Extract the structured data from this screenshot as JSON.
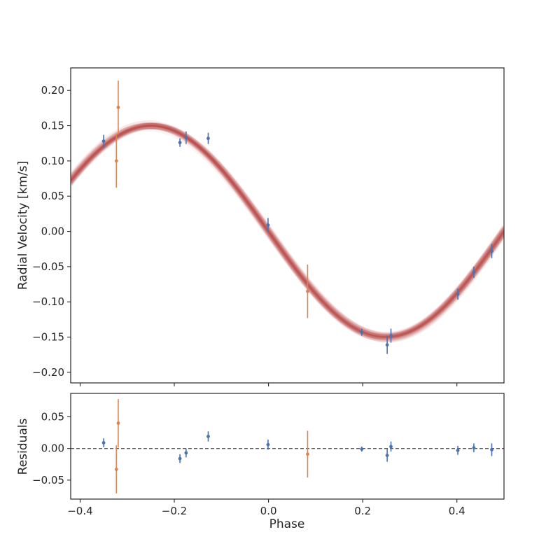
{
  "chart_data": [
    {
      "type": "scatter",
      "panel": "main",
      "xlabel": "",
      "ylabel": "Radial Velocity [km/s]",
      "xlim": [
        -0.42,
        0.5
      ],
      "ylim": [
        -0.215,
        0.232
      ],
      "x_ticks": [
        -0.4,
        -0.2,
        0.0,
        0.2,
        0.4
      ],
      "y_ticks": [
        -0.2,
        -0.15,
        -0.1,
        -0.05,
        0.0,
        0.05,
        0.1,
        0.15,
        0.2
      ],
      "y_tick_labels": [
        "−0.20",
        "−0.15",
        "−0.10",
        "−0.05",
        "0.00",
        "0.05",
        "0.10",
        "0.15",
        "0.20"
      ],
      "grid": false,
      "model": {
        "type": "sinusoid",
        "amplitude": 0.15,
        "peak_phase": -0.25,
        "color": "#b5443e"
      },
      "series": [
        {
          "color": "#4c72b0",
          "points": [
            {
              "x": -0.35,
              "y": 0.128,
              "err": 0.009
            },
            {
              "x": -0.188,
              "y": 0.126,
              "err": 0.006
            },
            {
              "x": -0.175,
              "y": 0.133,
              "err": 0.009
            },
            {
              "x": -0.128,
              "y": 0.132,
              "err": 0.008
            },
            {
              "x": -0.001,
              "y": 0.009,
              "err": 0.01
            },
            {
              "x": 0.198,
              "y": -0.143,
              "err": 0.005
            },
            {
              "x": 0.252,
              "y": -0.161,
              "err": 0.013
            },
            {
              "x": 0.26,
              "y": -0.148,
              "err": 0.01
            },
            {
              "x": 0.402,
              "y": -0.089,
              "err": 0.008
            },
            {
              "x": 0.436,
              "y": -0.058,
              "err": 0.008
            },
            {
              "x": 0.474,
              "y": -0.028,
              "err": 0.01
            }
          ]
        },
        {
          "color": "#dd8452",
          "points": [
            {
              "x": -0.323,
              "y": 0.1,
              "err": 0.038
            },
            {
              "x": -0.319,
              "y": 0.176,
              "err": 0.038
            },
            {
              "x": 0.083,
              "y": -0.085,
              "err": 0.038
            }
          ]
        }
      ]
    },
    {
      "type": "scatter",
      "panel": "residuals",
      "xlabel": "Phase",
      "ylabel": "Residuals",
      "xlim": [
        -0.42,
        0.5
      ],
      "ylim": [
        -0.08,
        0.087
      ],
      "x_ticks": [
        -0.4,
        -0.2,
        0.0,
        0.2,
        0.4
      ],
      "x_tick_labels": [
        "−0.4",
        "−0.2",
        "0.0",
        "0.2",
        "0.4"
      ],
      "y_ticks": [
        -0.05,
        0.0,
        0.05
      ],
      "y_tick_labels": [
        "−0.05",
        "0.00",
        "0.05"
      ],
      "grid": false,
      "zero_line": {
        "y": 0,
        "style": "dashed",
        "color": "#555555"
      },
      "series": [
        {
          "color": "#4c72b0",
          "points": [
            {
              "x": -0.35,
              "y": 0.009,
              "err": 0.007
            },
            {
              "x": -0.188,
              "y": -0.016,
              "err": 0.007
            },
            {
              "x": -0.175,
              "y": -0.007,
              "err": 0.007
            },
            {
              "x": -0.128,
              "y": 0.019,
              "err": 0.008
            },
            {
              "x": -0.001,
              "y": 0.006,
              "err": 0.008
            },
            {
              "x": 0.198,
              "y": -0.001,
              "err": 0.004
            },
            {
              "x": 0.252,
              "y": -0.011,
              "err": 0.01
            },
            {
              "x": 0.26,
              "y": 0.003,
              "err": 0.008
            },
            {
              "x": 0.402,
              "y": -0.003,
              "err": 0.007
            },
            {
              "x": 0.436,
              "y": 0.001,
              "err": 0.007
            },
            {
              "x": 0.474,
              "y": -0.002,
              "err": 0.01
            }
          ]
        },
        {
          "color": "#dd8452",
          "points": [
            {
              "x": -0.323,
              "y": -0.033,
              "err": 0.038
            },
            {
              "x": -0.319,
              "y": 0.04,
              "err": 0.038
            },
            {
              "x": 0.083,
              "y": -0.009,
              "err": 0.037
            }
          ]
        }
      ]
    }
  ]
}
